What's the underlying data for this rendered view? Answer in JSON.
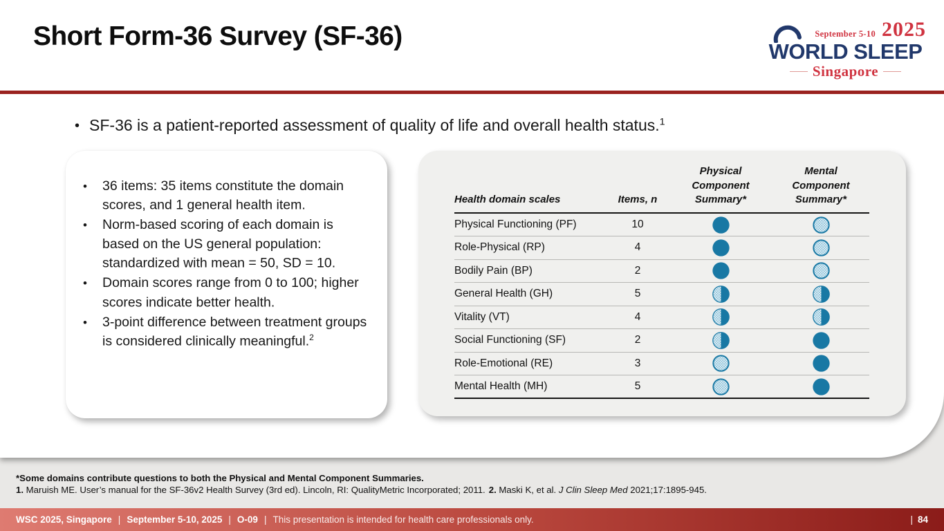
{
  "slide_title": "Short Form-36 Survey (SF-36)",
  "logo": {
    "dates": "September 5-10",
    "year": "2025",
    "name": "WORLD SLEEP",
    "city": "Singapore"
  },
  "intro": {
    "text": "SF-36 is a patient-reported assessment of quality of life and overall health status.",
    "sup": "1"
  },
  "key_points": [
    {
      "text": "36 items: 35 items constitute the domain scores, and 1 general health item.",
      "sup": ""
    },
    {
      "text": "Norm-based scoring of each domain is based on the US general population: standardized with mean = 50, SD = 10.",
      "sup": ""
    },
    {
      "text": "Domain scores range from 0 to 100; higher scores indicate better health.",
      "sup": ""
    },
    {
      "text": "3-point difference between treatment groups is considered clinically meaningful.",
      "sup": "2"
    }
  ],
  "table": {
    "headers": {
      "scale": "Health domain scales",
      "items": "Items, n",
      "physical": "Physical Component Summary*",
      "mental": "Mental Component Summary*"
    },
    "rows": [
      {
        "scale": "Physical Functioning (PF)",
        "items": "10",
        "physical": "full",
        "mental": "hatch"
      },
      {
        "scale": "Role-Physical (RP)",
        "items": "4",
        "physical": "full",
        "mental": "hatch"
      },
      {
        "scale": "Bodily Pain (BP)",
        "items": "2",
        "physical": "full",
        "mental": "hatch"
      },
      {
        "scale": "General Health (GH)",
        "items": "5",
        "physical": "half",
        "mental": "half"
      },
      {
        "scale": "Vitality (VT)",
        "items": "4",
        "physical": "half",
        "mental": "half"
      },
      {
        "scale": "Social Functioning (SF)",
        "items": "2",
        "physical": "half",
        "mental": "full"
      },
      {
        "scale": "Role-Emotional (RE)",
        "items": "3",
        "physical": "hatch",
        "mental": "full"
      },
      {
        "scale": "Mental Health (MH)",
        "items": "5",
        "physical": "hatch",
        "mental": "full"
      }
    ]
  },
  "footnotes": {
    "asterisk": "*Some domains contribute questions to both the Physical and Mental Component Summaries.",
    "ref1_label": "1.",
    "ref1_text": " Maruish ME. User’s manual for the SF-36v2 Health Survey (3rd ed). Lincoln, RI: QualityMetric Incorporated; 2011.",
    "ref2_label": "2.",
    "ref2_pre": " Maski K, et al. ",
    "ref2_journal": "J Clin Sleep Med",
    "ref2_post": " 2021;17:1895-945."
  },
  "footer": {
    "event": "WSC 2025, Singapore",
    "dates": "September 5-10, 2025",
    "session": "O-09",
    "disclaimer": "This presentation is intended for health care professionals only.",
    "separator": "|",
    "page": "84"
  },
  "colors": {
    "accent_line": "#9a2220",
    "circle_fill": "#1878a4",
    "hatch_line": "#8fc3da",
    "footer_gradient_left": "#de7b71",
    "footer_gradient_right": "#8b1c19",
    "logo_navy": "#21386b",
    "logo_red": "#d03340"
  }
}
